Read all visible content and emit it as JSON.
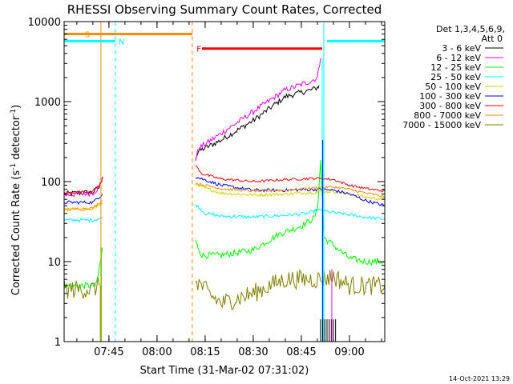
{
  "chart_data": {
    "type": "line",
    "title": "RHESSI Observing Summary Count Rates, Corrected",
    "xlabel": "Start Time (31-Mar-02 07:31:02)",
    "ylabel": "Corrected Count Rate (s⁻¹ detector⁻¹)",
    "ylabel_main": "Corrected Count Rate (s",
    "ylabel_sup1": "-1",
    "ylabel_mid": " detector",
    "ylabel_sup2": "-1",
    "ylabel_end": ")",
    "y_scale": "log",
    "ylim": [
      1,
      10000
    ],
    "xlim": [
      "07:31:02",
      "09:11:00"
    ],
    "x_ticks": [
      {
        "t": "07:45",
        "label": "07:45"
      },
      {
        "t": "08:00",
        "label": "08:00"
      },
      {
        "t": "08:15",
        "label": "08:15"
      },
      {
        "t": "08:30",
        "label": "08:30"
      },
      {
        "t": "08:45",
        "label": "08:45"
      },
      {
        "t": "09:00",
        "label": "09:00"
      }
    ],
    "y_ticks": [
      {
        "v": 1,
        "label": "1"
      },
      {
        "v": 10,
        "label": "10"
      },
      {
        "v": 100,
        "label": "100"
      },
      {
        "v": 1000,
        "label": "1000"
      },
      {
        "v": 10000,
        "label": "10000"
      }
    ],
    "legend": {
      "placement": "right",
      "header_1": "Det 1,3,4,5,6,9,",
      "header_2": "Att 0"
    },
    "series": [
      {
        "name": "3 - 6 keV",
        "color": "#000000",
        "noise": 0.035,
        "points": [
          [
            "07:31:02",
            70
          ],
          [
            "07:40",
            74
          ],
          [
            "07:42",
            85
          ],
          [
            "07:43",
            115
          ],
          [
            "08:12",
            200
          ],
          [
            "08:13",
            240
          ],
          [
            "08:20",
            330
          ],
          [
            "08:30",
            580
          ],
          [
            "08:40",
            1150
          ],
          [
            "08:48",
            1400
          ],
          [
            "08:50",
            1500
          ],
          [
            "08:50:30",
            1600
          ]
        ]
      },
      {
        "name": "6 - 12 keV",
        "color": "#ff00ff",
        "noise": 0.035,
        "points": [
          [
            "07:31:02",
            68
          ],
          [
            "07:40",
            72
          ],
          [
            "07:42",
            85
          ],
          [
            "07:43",
            110
          ],
          [
            "08:12",
            190
          ],
          [
            "08:13",
            260
          ],
          [
            "08:20",
            400
          ],
          [
            "08:30",
            750
          ],
          [
            "08:40",
            1400
          ],
          [
            "08:48",
            1800
          ],
          [
            "08:50",
            2000
          ],
          [
            "08:51",
            3500
          ]
        ]
      },
      {
        "name": "12 - 25 keV",
        "color": "#00ff00",
        "noise": 0.04,
        "points": [
          [
            "07:31:02",
            5
          ],
          [
            "07:41",
            5
          ],
          [
            "07:42",
            8
          ],
          [
            "07:43",
            15
          ],
          [
            "08:12",
            18
          ],
          [
            "08:14",
            12
          ],
          [
            "08:20",
            12
          ],
          [
            "08:30",
            14
          ],
          [
            "08:38",
            22
          ],
          [
            "08:45",
            28
          ],
          [
            "08:49",
            35
          ],
          [
            "08:50",
            45
          ],
          [
            "08:51",
            180
          ],
          [
            "08:52",
            20
          ],
          [
            "09:00",
            11
          ],
          [
            "09:05",
            10
          ],
          [
            "09:11",
            10
          ]
        ]
      },
      {
        "name": "25 - 50 keV",
        "color": "#00ffff",
        "noise": 0.02,
        "points": [
          [
            "07:31:02",
            33
          ],
          [
            "07:40",
            33
          ],
          [
            "07:43",
            35
          ],
          [
            "08:12",
            52
          ],
          [
            "08:15",
            40
          ],
          [
            "08:20",
            37
          ],
          [
            "08:30",
            36
          ],
          [
            "08:40",
            38
          ],
          [
            "08:47",
            40
          ],
          [
            "08:50",
            44
          ],
          [
            "08:55",
            41
          ],
          [
            "09:05",
            36
          ],
          [
            "09:11",
            34
          ]
        ]
      },
      {
        "name": "50 - 100 keV",
        "color": "#d8d000",
        "noise": 0.02,
        "points": [
          [
            "07:31:02",
            44
          ],
          [
            "07:40",
            45
          ],
          [
            "07:43",
            55
          ],
          [
            "08:12",
            90
          ],
          [
            "08:20",
            72
          ],
          [
            "08:30",
            68
          ],
          [
            "08:40",
            70
          ],
          [
            "08:50",
            74
          ],
          [
            "08:55",
            76
          ],
          [
            "09:00",
            70
          ],
          [
            "09:05",
            64
          ],
          [
            "09:11",
            60
          ]
        ]
      },
      {
        "name": "100 - 300 keV",
        "color": "#0000ff",
        "noise": 0.02,
        "points": [
          [
            "07:31:02",
            55
          ],
          [
            "07:40",
            55
          ],
          [
            "07:43",
            70
          ],
          [
            "08:12",
            115
          ],
          [
            "08:20",
            90
          ],
          [
            "08:30",
            78
          ],
          [
            "08:40",
            78
          ],
          [
            "08:50",
            80
          ],
          [
            "08:55",
            78
          ],
          [
            "09:00",
            70
          ],
          [
            "09:05",
            58
          ],
          [
            "09:11",
            50
          ]
        ]
      },
      {
        "name": "300 - 800 keV",
        "color": "#ff0000",
        "noise": 0.015,
        "points": [
          [
            "07:31:02",
            72
          ],
          [
            "07:40",
            76
          ],
          [
            "07:43",
            100
          ],
          [
            "08:12",
            160
          ],
          [
            "08:14",
            125
          ],
          [
            "08:20",
            108
          ],
          [
            "08:30",
            100
          ],
          [
            "08:40",
            106
          ],
          [
            "08:50",
            110
          ],
          [
            "08:55",
            106
          ],
          [
            "09:00",
            90
          ],
          [
            "09:05",
            82
          ],
          [
            "09:11",
            76
          ]
        ]
      },
      {
        "name": "800 - 7000 keV",
        "color": "#ff8c00",
        "noise": 0.015,
        "points": [
          [
            "07:31:02",
            45
          ],
          [
            "07:40",
            47
          ],
          [
            "07:43",
            58
          ],
          [
            "08:12",
            95
          ],
          [
            "08:20",
            82
          ],
          [
            "08:30",
            76
          ],
          [
            "08:40",
            78
          ],
          [
            "08:50",
            84
          ],
          [
            "08:55",
            86
          ],
          [
            "09:00",
            80
          ],
          [
            "09:05",
            72
          ],
          [
            "09:11",
            65
          ]
        ]
      },
      {
        "name": "7000 - 15000 keV",
        "color": "#808000",
        "noise": 0.12,
        "points": [
          [
            "07:31:02",
            4.5
          ],
          [
            "07:40",
            4.5
          ],
          [
            "07:42",
            5
          ],
          [
            "08:12",
            6
          ],
          [
            "08:16",
            4
          ],
          [
            "08:20",
            3
          ],
          [
            "08:30",
            4
          ],
          [
            "08:35",
            5
          ],
          [
            "08:40",
            6
          ],
          [
            "08:49",
            6
          ],
          [
            "08:51",
            6
          ],
          [
            "08:55",
            6.5
          ],
          [
            "09:00",
            5
          ],
          [
            "09:11",
            5
          ]
        ]
      }
    ],
    "flags": [
      {
        "label": "S",
        "color": "#ff8c00",
        "label_color": "#ff8c00",
        "x0": "07:31:02",
        "x1": "08:11:00",
        "y": 7000
      },
      {
        "label": "N",
        "color": "#00ffff",
        "label_color": "#00ffff",
        "x0": "07:31:02",
        "x1": "07:47:00",
        "y": 5700
      },
      {
        "label": "",
        "color": "#00ffff",
        "label_color": "#00ffff",
        "x0": "08:53:00",
        "x1": "09:11:00",
        "y": 5700
      },
      {
        "label": "F",
        "color": "#ff0000",
        "label_color": "#ff0000",
        "x0": "08:14:00",
        "x1": "08:51:30",
        "y": 4600
      }
    ],
    "boundaries": [
      {
        "t": "07:31:02",
        "color": "#00ffff",
        "style": "solid"
      },
      {
        "t": "07:42:30",
        "color": "#ff8c00",
        "style": "solid"
      },
      {
        "t": "07:47:00",
        "color": "#00ffff",
        "style": "dashed"
      },
      {
        "t": "08:11:00",
        "color": "#ff8c00",
        "style": "dashed"
      },
      {
        "t": "08:52:00",
        "color": "#00ffff",
        "style": "solid"
      },
      {
        "t": "09:11:00",
        "color": "#00ffff",
        "style": "dashed"
      }
    ],
    "gap": [
      "07:43:00",
      "08:12:00"
    ],
    "timestamp": "14-Oct-2021 13:29"
  }
}
